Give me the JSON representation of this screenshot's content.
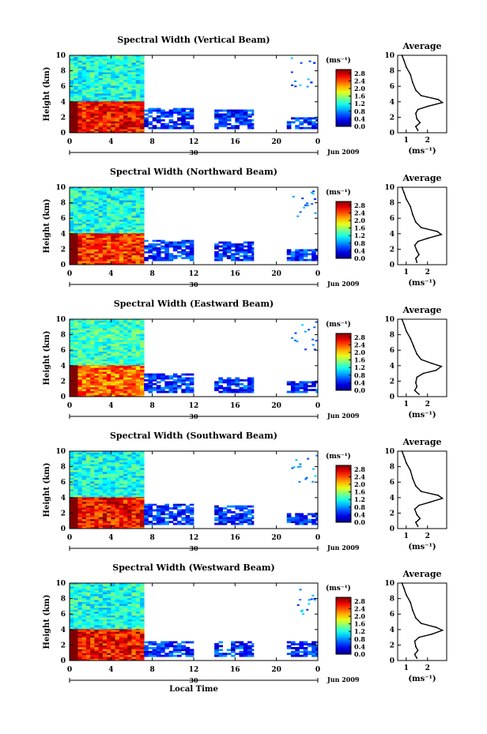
{
  "chart_data": [
    {
      "type": "heatmap",
      "title": "Spectral Width (Vertical Beam)",
      "xlabel": "",
      "ylabel": "Height (km)",
      "x_ticks": [
        "0",
        "4",
        "8",
        "12",
        "16",
        "20",
        "0"
      ],
      "y_ticks": [
        "0",
        "2",
        "4",
        "6",
        "8",
        "10"
      ],
      "xlim": [
        0,
        24
      ],
      "ylim": [
        0,
        10
      ],
      "date_marker": "30",
      "date_label": "Jun 2009",
      "colorbar": {
        "unit": "(ms⁻¹)",
        "ticks": [
          "0.0",
          "0.4",
          "0.8",
          "1.2",
          "1.6",
          "2.0",
          "2.4",
          "2.8"
        ],
        "range": [
          0,
          3.0
        ]
      },
      "regions": [
        {
          "x": [
            0,
            7.2
          ],
          "y": [
            0,
            4.1
          ],
          "value": 2.6
        },
        {
          "x": [
            0,
            7.2
          ],
          "y": [
            4.1,
            10
          ],
          "value": 1.2
        },
        {
          "x": [
            7.2,
            12
          ],
          "y": [
            0.5,
            3.2
          ],
          "value": 0.5
        },
        {
          "x": [
            14,
            17.8
          ],
          "y": [
            0.5,
            3.0
          ],
          "value": 0.5
        },
        {
          "x": [
            21,
            24
          ],
          "y": [
            0.5,
            2.0
          ],
          "value": 0.5
        }
      ],
      "average": {
        "title": "Average",
        "xlabel": "(ms⁻¹)",
        "x_ticks": [
          "1",
          "2"
        ],
        "y_ticks": [
          "0",
          "2",
          "4",
          "6",
          "8",
          "10"
        ],
        "xlim": [
          0.6,
          2.9
        ],
        "ylim": [
          0,
          10
        ],
        "x": [
          1.55,
          1.45,
          1.65,
          1.5,
          1.45,
          1.55,
          2.0,
          2.7,
          2.5,
          1.7,
          1.45,
          1.3,
          1.2,
          1.0,
          0.9,
          0.8
        ],
        "y": [
          0.3,
          0.8,
          1.3,
          1.8,
          2.5,
          3.0,
          3.4,
          3.9,
          4.3,
          4.8,
          5.5,
          6.5,
          7.5,
          8.5,
          9.3,
          10.0
        ]
      }
    },
    {
      "type": "heatmap",
      "title": "Spectral Width (Northward Beam)",
      "xlabel": "",
      "ylabel": "Height (km)",
      "x_ticks": [
        "0",
        "4",
        "8",
        "12",
        "16",
        "20",
        "0"
      ],
      "y_ticks": [
        "0",
        "2",
        "4",
        "6",
        "8",
        "10"
      ],
      "xlim": [
        0,
        24
      ],
      "ylim": [
        0,
        10
      ],
      "date_marker": "30",
      "date_label": "Jun 2009",
      "colorbar": {
        "unit": "(ms⁻¹)",
        "ticks": [
          "0.0",
          "0.4",
          "0.8",
          "1.2",
          "1.6",
          "2.0",
          "2.4",
          "2.8"
        ],
        "range": [
          0,
          3.0
        ]
      },
      "regions": [
        {
          "x": [
            0,
            7.2
          ],
          "y": [
            0,
            4.1
          ],
          "value": 2.5
        },
        {
          "x": [
            0,
            7.2
          ],
          "y": [
            4.1,
            10
          ],
          "value": 1.2
        },
        {
          "x": [
            7.2,
            12
          ],
          "y": [
            0.5,
            3.2
          ],
          "value": 0.5
        },
        {
          "x": [
            14,
            17.8
          ],
          "y": [
            0.5,
            3.0
          ],
          "value": 0.5
        },
        {
          "x": [
            21,
            24
          ],
          "y": [
            0.5,
            2.0
          ],
          "value": 0.5
        }
      ],
      "average": {
        "title": "Average",
        "xlabel": "(ms⁻¹)",
        "x_ticks": [
          "1",
          "2"
        ],
        "y_ticks": [
          "0",
          "2",
          "4",
          "6",
          "8",
          "10"
        ],
        "xlim": [
          0.6,
          2.9
        ],
        "ylim": [
          0,
          10
        ],
        "x": [
          1.5,
          1.45,
          1.6,
          1.5,
          1.4,
          1.55,
          2.0,
          2.65,
          2.45,
          1.7,
          1.45,
          1.3,
          1.2,
          1.0,
          0.9,
          0.8
        ],
        "y": [
          0.3,
          0.8,
          1.3,
          1.8,
          2.5,
          3.0,
          3.4,
          3.9,
          4.3,
          4.8,
          5.5,
          6.5,
          7.5,
          8.5,
          9.3,
          10.0
        ]
      }
    },
    {
      "type": "heatmap",
      "title": "Spectral Width (Eastward Beam)",
      "xlabel": "",
      "ylabel": "Height (km)",
      "x_ticks": [
        "0",
        "4",
        "8",
        "12",
        "16",
        "20",
        "0"
      ],
      "y_ticks": [
        "0",
        "2",
        "4",
        "6",
        "8",
        "10"
      ],
      "xlim": [
        0,
        24
      ],
      "ylim": [
        0,
        10
      ],
      "date_marker": "30",
      "date_label": "Jun 2009",
      "colorbar": {
        "unit": "(ms⁻¹)",
        "ticks": [
          "0.0",
          "0.4",
          "0.8",
          "1.2",
          "1.6",
          "2.0",
          "2.4",
          "2.8"
        ],
        "range": [
          0,
          3.0
        ]
      },
      "regions": [
        {
          "x": [
            0,
            7.2
          ],
          "y": [
            0,
            4.1
          ],
          "value": 2.3
        },
        {
          "x": [
            0,
            7.2
          ],
          "y": [
            4.1,
            10
          ],
          "value": 1.3
        },
        {
          "x": [
            7.2,
            12
          ],
          "y": [
            0.5,
            3.0
          ],
          "value": 0.5
        },
        {
          "x": [
            14,
            17.8
          ],
          "y": [
            0.5,
            2.5
          ],
          "value": 0.5
        },
        {
          "x": [
            21,
            24
          ],
          "y": [
            0.5,
            2.0
          ],
          "value": 0.5
        }
      ],
      "average": {
        "title": "Average",
        "xlabel": "(ms⁻¹)",
        "x_ticks": [
          "1",
          "2"
        ],
        "y_ticks": [
          "0",
          "2",
          "4",
          "6",
          "8",
          "10"
        ],
        "xlim": [
          0.6,
          2.9
        ],
        "ylim": [
          0,
          10
        ],
        "x": [
          1.6,
          1.4,
          1.5,
          1.45,
          1.5,
          1.8,
          2.4,
          2.65,
          2.2,
          1.7,
          1.5,
          1.35,
          1.2,
          1.0,
          0.9,
          0.8
        ],
        "y": [
          0.3,
          0.8,
          1.3,
          1.8,
          2.5,
          3.0,
          3.4,
          3.9,
          4.3,
          4.8,
          5.5,
          6.5,
          7.5,
          8.5,
          9.3,
          10.0
        ]
      }
    },
    {
      "type": "heatmap",
      "title": "Spectral Width (Southward Beam)",
      "xlabel": "",
      "ylabel": "Height (km)",
      "x_ticks": [
        "0",
        "4",
        "8",
        "12",
        "16",
        "20",
        "0"
      ],
      "y_ticks": [
        "0",
        "2",
        "4",
        "6",
        "8",
        "10"
      ],
      "xlim": [
        0,
        24
      ],
      "ylim": [
        0,
        10
      ],
      "date_marker": "30",
      "date_label": "Jun 2009",
      "colorbar": {
        "unit": "(ms⁻¹)",
        "ticks": [
          "0.0",
          "0.4",
          "0.8",
          "1.2",
          "1.6",
          "2.0",
          "2.4",
          "2.8"
        ],
        "range": [
          0,
          3.0
        ]
      },
      "regions": [
        {
          "x": [
            0,
            7.2
          ],
          "y": [
            0,
            4.1
          ],
          "value": 2.6
        },
        {
          "x": [
            0,
            7.2
          ],
          "y": [
            4.1,
            10
          ],
          "value": 1.2
        },
        {
          "x": [
            7.2,
            12
          ],
          "y": [
            0.5,
            3.2
          ],
          "value": 0.5
        },
        {
          "x": [
            14,
            17.8
          ],
          "y": [
            0.5,
            3.0
          ],
          "value": 0.5
        },
        {
          "x": [
            21,
            24
          ],
          "y": [
            0.5,
            2.0
          ],
          "value": 0.5
        }
      ],
      "average": {
        "title": "Average",
        "xlabel": "(ms⁻¹)",
        "x_ticks": [
          "1",
          "2"
        ],
        "y_ticks": [
          "0",
          "2",
          "4",
          "6",
          "8",
          "10"
        ],
        "xlim": [
          0.6,
          2.9
        ],
        "ylim": [
          0,
          10
        ],
        "x": [
          1.55,
          1.45,
          1.65,
          1.5,
          1.4,
          1.6,
          2.1,
          2.7,
          2.5,
          1.7,
          1.45,
          1.3,
          1.2,
          1.0,
          0.9,
          0.8
        ],
        "y": [
          0.3,
          0.8,
          1.3,
          1.8,
          2.5,
          3.0,
          3.4,
          3.9,
          4.3,
          4.8,
          5.5,
          6.5,
          7.5,
          8.5,
          9.3,
          10.0
        ]
      }
    },
    {
      "type": "heatmap",
      "title": "Spectral Width (Westward Beam)",
      "xlabel": "Local Time",
      "ylabel": "Height (km)",
      "x_ticks": [
        "0",
        "4",
        "8",
        "12",
        "16",
        "20",
        "0"
      ],
      "y_ticks": [
        "0",
        "2",
        "4",
        "6",
        "8",
        "10"
      ],
      "xlim": [
        0,
        24
      ],
      "ylim": [
        0,
        10
      ],
      "date_marker": "30",
      "date_label": "Jun 2009",
      "colorbar": {
        "unit": "(ms⁻¹)",
        "ticks": [
          "0.0",
          "0.4",
          "0.8",
          "1.2",
          "1.6",
          "2.0",
          "2.4",
          "2.8"
        ],
        "range": [
          0,
          3.0
        ]
      },
      "regions": [
        {
          "x": [
            0,
            7.2
          ],
          "y": [
            0,
            4.1
          ],
          "value": 2.6
        },
        {
          "x": [
            0,
            7.2
          ],
          "y": [
            4.1,
            10
          ],
          "value": 1.2
        },
        {
          "x": [
            7.2,
            12
          ],
          "y": [
            0.5,
            2.5
          ],
          "value": 0.5
        },
        {
          "x": [
            14,
            17.8
          ],
          "y": [
            0.5,
            2.5
          ],
          "value": 0.5
        },
        {
          "x": [
            21,
            24
          ],
          "y": [
            0.5,
            2.5
          ],
          "value": 0.5
        }
      ],
      "average": {
        "title": "Average",
        "xlabel": "(ms⁻¹)",
        "x_ticks": [
          "1",
          "2"
        ],
        "y_ticks": [
          "0",
          "2",
          "4",
          "6",
          "8",
          "10"
        ],
        "xlim": [
          0.6,
          2.9
        ],
        "ylim": [
          0,
          10
        ],
        "x": [
          1.5,
          1.4,
          1.55,
          1.45,
          1.4,
          1.6,
          2.2,
          2.7,
          2.4,
          1.7,
          1.45,
          1.3,
          1.2,
          1.0,
          0.9,
          0.8
        ],
        "y": [
          0.3,
          0.8,
          1.3,
          1.8,
          2.5,
          3.0,
          3.4,
          3.9,
          4.3,
          4.8,
          5.5,
          6.5,
          7.5,
          8.5,
          9.3,
          10.0
        ]
      }
    }
  ]
}
